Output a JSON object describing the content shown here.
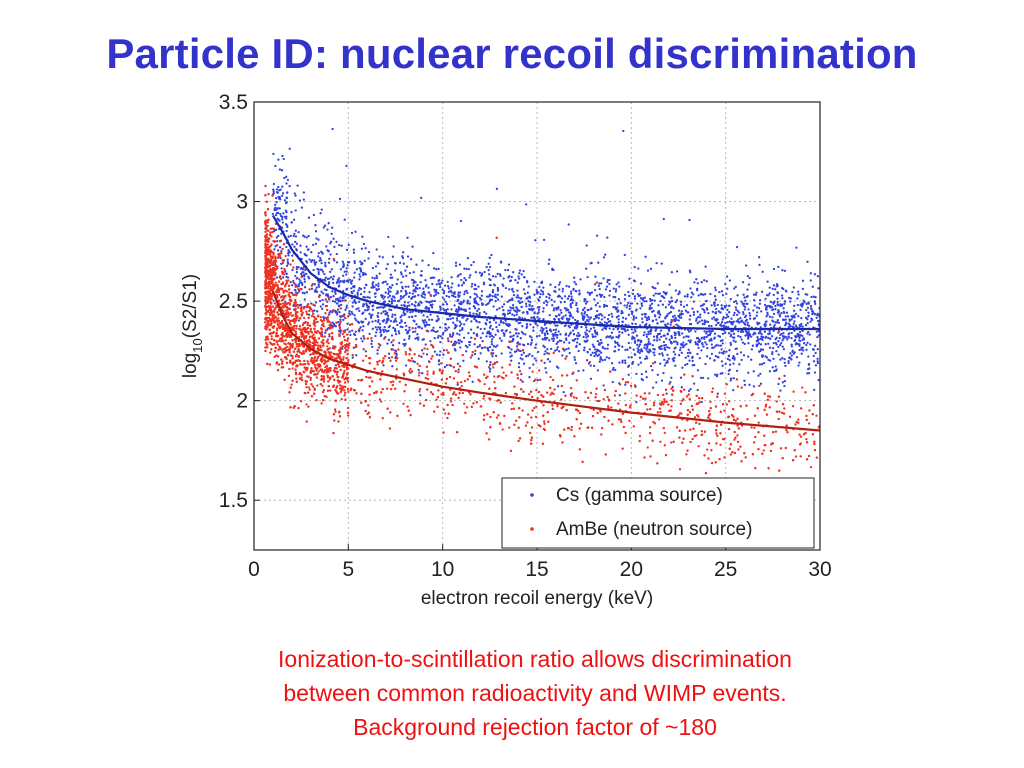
{
  "slide": {
    "title": "Particle ID: nuclear recoil discrimination",
    "caption_lines": [
      "Ionization-to-scintillation ratio allows discrimination",
      "between common radioactivity and WIMP events.",
      "Background rejection factor of ~180"
    ]
  },
  "chart_data": {
    "type": "scatter",
    "title": "",
    "xlabel": "electron recoil energy (keV)",
    "ylabel": "log10(S2/S1)",
    "ylabel_parts": {
      "base": "log",
      "sub": "10",
      "rest": "(S2/S1)"
    },
    "xlim": [
      0,
      30
    ],
    "ylim": [
      1.25,
      3.5
    ],
    "xticks": [
      0,
      5,
      10,
      15,
      20,
      25,
      30
    ],
    "xtick_labels": [
      "0",
      "5",
      "10",
      "15",
      "20",
      "25",
      "30"
    ],
    "yticks": [
      1.5,
      2,
      2.5,
      3,
      3.5
    ],
    "ytick_labels": [
      "1.5",
      "2",
      "2.5",
      "3",
      "3.5"
    ],
    "grid": true,
    "legend_position": "bottom-right",
    "series": [
      {
        "name": "Cs (gamma source)",
        "color": "#3344dd",
        "marker": "dot",
        "mean_curve": {
          "x": [
            1,
            1.5,
            2,
            3,
            4,
            5,
            6,
            8,
            10,
            12,
            15,
            20,
            25,
            30
          ],
          "y": [
            2.93,
            2.85,
            2.76,
            2.64,
            2.57,
            2.53,
            2.5,
            2.46,
            2.44,
            2.42,
            2.4,
            2.37,
            2.36,
            2.36
          ]
        }
      },
      {
        "name": "AmBe (neutron source)",
        "color": "#ee3322",
        "marker": "dot",
        "mean_curve": {
          "x": [
            1,
            1.5,
            2,
            3,
            4,
            5,
            6,
            8,
            10,
            12,
            15,
            20,
            25,
            30
          ],
          "y": [
            2.55,
            2.43,
            2.34,
            2.26,
            2.21,
            2.18,
            2.15,
            2.11,
            2.07,
            2.04,
            2.0,
            1.94,
            1.89,
            1.85
          ]
        }
      }
    ]
  }
}
